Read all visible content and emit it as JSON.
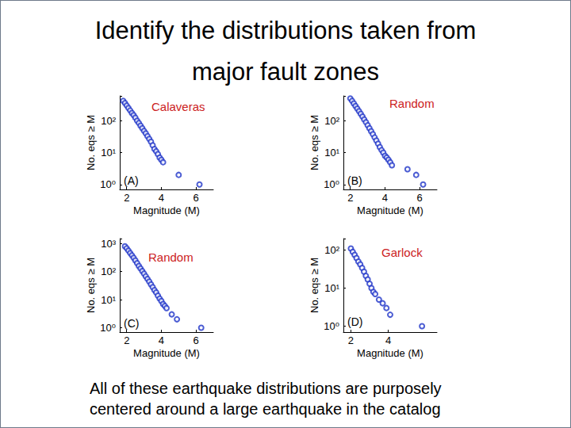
{
  "slide": {
    "title": [
      "Identify the distributions taken from",
      "major fault zones"
    ],
    "footer": [
      "All of these earthquake distributions are purposely",
      "centered around a large earthquake in the catalog"
    ]
  },
  "chart_data": [
    {
      "type": "scatter",
      "title": "Calaveras",
      "annotation": "(A)",
      "xlabel": "Magnitude (M)",
      "ylabel": "No. eqs ≥ M",
      "x": [
        1.8,
        1.9,
        2.0,
        2.1,
        2.2,
        2.3,
        2.4,
        2.5,
        2.6,
        2.7,
        2.8,
        2.9,
        3.0,
        3.1,
        3.2,
        3.3,
        3.4,
        3.5,
        3.6,
        3.7,
        3.8,
        3.9,
        4.0,
        4.1,
        5.0,
        6.2
      ],
      "values": [
        420,
        360,
        300,
        250,
        210,
        175,
        150,
        125,
        100,
        85,
        70,
        58,
        48,
        40,
        33,
        27,
        22,
        17,
        13,
        11,
        9,
        7,
        6,
        5,
        2,
        1
      ],
      "color": "#1f35c8",
      "marker": "circle",
      "log": "y",
      "grid": false,
      "xlim": [
        1.6,
        7
      ],
      "xticks": [
        2,
        4,
        6
      ],
      "ylim": [
        0.7,
        600
      ],
      "yticks": [
        {
          "value": 1,
          "label": "10⁰"
        },
        {
          "value": 10,
          "label": "10¹"
        },
        {
          "value": 100,
          "label": "10²"
        }
      ]
    },
    {
      "type": "scatter",
      "title": "Random",
      "annotation": "(B)",
      "xlabel": "Magnitude (M)",
      "ylabel": "No. eqs ≥ M",
      "x": [
        2.0,
        2.1,
        2.2,
        2.3,
        2.4,
        2.5,
        2.6,
        2.7,
        2.8,
        2.9,
        3.0,
        3.1,
        3.2,
        3.3,
        3.4,
        3.5,
        3.6,
        3.7,
        3.8,
        3.9,
        4.0,
        4.1,
        4.2,
        4.3,
        4.4,
        5.3,
        5.8,
        6.2
      ],
      "values": [
        500,
        420,
        350,
        290,
        240,
        200,
        165,
        135,
        110,
        90,
        72,
        58,
        47,
        38,
        30,
        24,
        19,
        15,
        12,
        10,
        8,
        7,
        6,
        5,
        4,
        3,
        2,
        1
      ],
      "color": "#1f35c8",
      "marker": "circle",
      "log": "y",
      "grid": false,
      "xlim": [
        1.6,
        7
      ],
      "xticks": [
        2,
        4,
        6
      ],
      "ylim": [
        0.7,
        600
      ],
      "yticks": [
        {
          "value": 1,
          "label": "10⁰"
        },
        {
          "value": 10,
          "label": "10¹"
        },
        {
          "value": 100,
          "label": "10²"
        }
      ]
    },
    {
      "type": "scatter",
      "title": "Random",
      "annotation": "(C)",
      "xlabel": "Magnitude (M)",
      "ylabel": "No. eqs ≥ M",
      "x": [
        1.9,
        2.0,
        2.1,
        2.2,
        2.3,
        2.4,
        2.5,
        2.6,
        2.7,
        2.8,
        2.9,
        3.0,
        3.1,
        3.2,
        3.3,
        3.4,
        3.5,
        3.6,
        3.7,
        3.8,
        3.9,
        4.0,
        4.1,
        4.2,
        4.3,
        4.6,
        4.9,
        6.3
      ],
      "values": [
        800,
        680,
        560,
        460,
        380,
        310,
        250,
        200,
        160,
        130,
        105,
        85,
        68,
        55,
        44,
        35,
        28,
        22,
        18,
        14,
        11,
        9,
        7,
        6,
        5,
        3,
        2,
        1
      ],
      "color": "#1f35c8",
      "marker": "circle",
      "log": "y",
      "grid": false,
      "xlim": [
        1.6,
        7
      ],
      "xticks": [
        2,
        4,
        6
      ],
      "ylim": [
        0.7,
        1500
      ],
      "yticks": [
        {
          "value": 1,
          "label": "10⁰"
        },
        {
          "value": 10,
          "label": "10¹"
        },
        {
          "value": 100,
          "label": "10²"
        },
        {
          "value": 1000,
          "label": "10³"
        }
      ]
    },
    {
      "type": "scatter",
      "title": "Garlock",
      "annotation": "(D)",
      "xlabel": "Magnitude (M)",
      "ylabel": "No. eqs ≥ M",
      "x": [
        2.0,
        2.1,
        2.2,
        2.3,
        2.4,
        2.5,
        2.6,
        2.7,
        2.8,
        2.9,
        3.0,
        3.1,
        3.2,
        3.3,
        3.5,
        3.7,
        3.9,
        4.1,
        5.8
      ],
      "values": [
        110,
        90,
        75,
        62,
        50,
        42,
        34,
        27,
        21,
        17,
        13,
        10,
        8,
        7,
        5,
        4,
        3,
        2,
        1
      ],
      "color": "#1f35c8",
      "marker": "circle",
      "log": "y",
      "grid": false,
      "xlim": [
        1.6,
        6.6
      ],
      "xticks": [
        2,
        4
      ],
      "ylim": [
        0.7,
        200
      ],
      "yticks": [
        {
          "value": 1,
          "label": "10⁰"
        },
        {
          "value": 10,
          "label": "10¹"
        },
        {
          "value": 100,
          "label": "10²"
        }
      ]
    }
  ]
}
